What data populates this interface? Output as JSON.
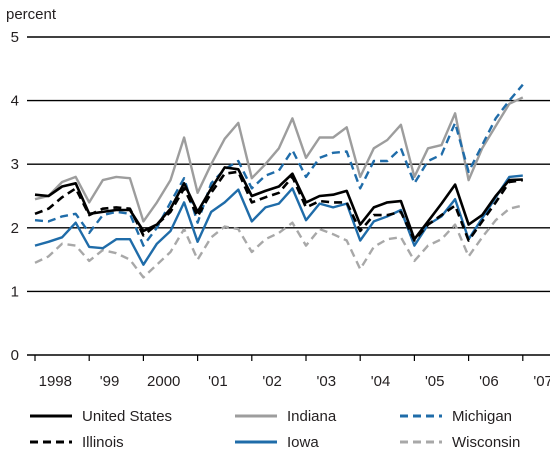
{
  "chart_data": {
    "type": "line",
    "ylabel": "percent",
    "ylim": [
      0,
      5
    ],
    "yticks": [
      "0",
      "1",
      "2",
      "3",
      "4",
      "5"
    ],
    "xticks": [
      "1998",
      "'99",
      "2000",
      "'01",
      "'02",
      "'03",
      "'04",
      "'05",
      "'06",
      "'07"
    ],
    "grid": "horizontal",
    "legend_position": "bottom",
    "x": [
      "1998Q1",
      "1998Q2",
      "1998Q3",
      "1998Q4",
      "1999Q1",
      "1999Q2",
      "1999Q3",
      "1999Q4",
      "2000Q1",
      "2000Q2",
      "2000Q3",
      "2000Q4",
      "2001Q1",
      "2001Q2",
      "2001Q3",
      "2001Q4",
      "2002Q1",
      "2002Q2",
      "2002Q3",
      "2002Q4",
      "2003Q1",
      "2003Q2",
      "2003Q3",
      "2003Q4",
      "2004Q1",
      "2004Q2",
      "2004Q3",
      "2004Q4",
      "2005Q1",
      "2005Q2",
      "2005Q3",
      "2005Q4",
      "2006Q1",
      "2006Q2",
      "2006Q3",
      "2006Q4",
      "2007Q1"
    ],
    "series": [
      {
        "name": "United States",
        "color": "#000000",
        "dash": "solid",
        "values": [
          2.52,
          2.5,
          2.65,
          2.7,
          2.22,
          2.25,
          2.28,
          2.28,
          1.95,
          2.05,
          2.3,
          2.7,
          2.25,
          2.62,
          2.95,
          2.92,
          2.5,
          2.58,
          2.65,
          2.85,
          2.4,
          2.5,
          2.52,
          2.58,
          2.05,
          2.32,
          2.4,
          2.42,
          1.82,
          2.1,
          2.38,
          2.68,
          2.05,
          2.2,
          2.5,
          2.75,
          2.76
        ]
      },
      {
        "name": "Illinois",
        "color": "#000000",
        "dash": "dashed",
        "values": [
          2.22,
          2.3,
          2.48,
          2.62,
          2.2,
          2.3,
          2.32,
          2.3,
          1.88,
          2.05,
          2.25,
          2.62,
          2.18,
          2.55,
          2.85,
          2.88,
          2.4,
          2.48,
          2.55,
          2.8,
          2.32,
          2.42,
          2.4,
          2.4,
          1.95,
          2.2,
          2.2,
          2.25,
          1.8,
          2.05,
          2.2,
          2.35,
          1.8,
          2.1,
          2.4,
          2.72,
          2.75
        ]
      },
      {
        "name": "Indiana",
        "color": "#9d9d9d",
        "dash": "solid",
        "values": [
          2.45,
          2.5,
          2.72,
          2.8,
          2.4,
          2.75,
          2.8,
          2.78,
          2.1,
          2.4,
          2.75,
          3.42,
          2.55,
          3.0,
          3.4,
          3.65,
          2.78,
          3.0,
          3.25,
          3.72,
          3.1,
          3.42,
          3.42,
          3.58,
          2.8,
          3.25,
          3.38,
          3.62,
          2.8,
          3.25,
          3.3,
          3.8,
          2.75,
          3.25,
          3.6,
          3.95,
          4.05
        ]
      },
      {
        "name": "Iowa",
        "color": "#1f6ca9",
        "dash": "solid",
        "values": [
          1.72,
          1.78,
          1.85,
          2.08,
          1.7,
          1.68,
          1.82,
          1.82,
          1.42,
          1.75,
          1.95,
          2.4,
          1.78,
          2.25,
          2.4,
          2.6,
          2.1,
          2.32,
          2.38,
          2.62,
          2.12,
          2.38,
          2.32,
          2.38,
          1.8,
          2.1,
          2.18,
          2.28,
          1.72,
          2.05,
          2.18,
          2.45,
          1.82,
          2.15,
          2.48,
          2.8,
          2.82
        ]
      },
      {
        "name": "Michigan",
        "color": "#1f6ca9",
        "dash": "dashed",
        "values": [
          2.12,
          2.1,
          2.18,
          2.22,
          1.92,
          2.2,
          2.25,
          2.22,
          1.72,
          2.0,
          2.4,
          2.78,
          2.08,
          2.7,
          2.92,
          3.05,
          2.62,
          2.82,
          2.9,
          3.22,
          2.8,
          3.1,
          3.18,
          3.2,
          2.62,
          3.05,
          3.05,
          3.25,
          2.7,
          3.05,
          3.15,
          3.65,
          2.88,
          3.3,
          3.72,
          4.0,
          4.25
        ]
      },
      {
        "name": "Wisconsin",
        "color": "#a8a8a8",
        "dash": "dashed",
        "values": [
          1.45,
          1.55,
          1.75,
          1.72,
          1.48,
          1.65,
          1.6,
          1.5,
          1.22,
          1.42,
          1.62,
          1.98,
          1.5,
          1.85,
          2.02,
          1.98,
          1.62,
          1.82,
          1.92,
          2.08,
          1.72,
          1.98,
          1.9,
          1.8,
          1.35,
          1.7,
          1.82,
          1.85,
          1.48,
          1.72,
          1.82,
          2.05,
          1.55,
          1.85,
          2.12,
          2.3,
          2.35
        ]
      }
    ]
  }
}
